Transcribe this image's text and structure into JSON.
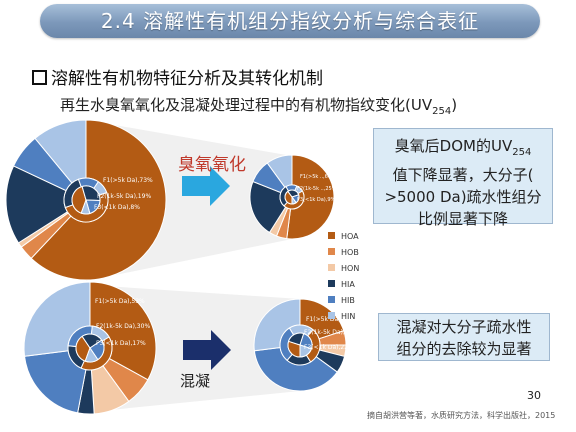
{
  "slide": {
    "title": "2.4 溶解性有机组分指纹分析与综合表征",
    "heading": "溶解性有机物特征分析及其转化机制",
    "subtitle_main": "再生水臭氧氧化及混凝处理过程中的有机物指纹变化(UV",
    "subtitle_sub": "254",
    "subtitle_close": ")",
    "page_number": "30",
    "citation": "摘自胡洪营等著，水质研究方法，科学出版社，2015"
  },
  "labels": {
    "ozone": "臭氧氧化",
    "coagulation": "混凝"
  },
  "notes": {
    "ozone_1": "臭氧后DOM的UV",
    "ozone_1_sub": "254",
    "ozone_2": "值下降显著，大分子(",
    "ozone_3": ">5000 Da)疏水性组分",
    "ozone_4": "比例显著下降",
    "coag_1": "混凝对大分子疏水性",
    "coag_2": "组分的去除较为显著"
  },
  "legend": [
    {
      "label": "HOA",
      "color": "#b35b14"
    },
    {
      "label": "HOB",
      "color": "#e0874a"
    },
    {
      "label": "HON",
      "color": "#f3c9a6"
    },
    {
      "label": "HIA",
      "color": "#1d3a5c"
    },
    {
      "label": "HIB",
      "color": "#4f7fc0"
    },
    {
      "label": "HIN",
      "color": "#a9c4e6"
    }
  ],
  "pie_text": {
    "oz_before_1": "F1(>5k Da),73%",
    "oz_before_2": "F2(1k-5k Da),19%",
    "oz_before_3": "F3(<1k Da),8%",
    "oz_after_1": "F1(>5k ..,66%",
    "oz_after_2": "F2(1k-5k ..,25%",
    "oz_after_3": "F3(<1k Da),9%",
    "co_before_1": "F1(>5k Da),53%",
    "co_before_2": "F2(1k-5k Da),30%",
    "co_before_3": "F3(<1k Da),17%",
    "co_after_1": "F1(>5k Da),41%",
    "co_after_2": "F2(1k-5k Da),37%",
    "co_after_3": "F3(<1k Da),22%"
  },
  "colors": {
    "ozone_label": "#c0392b",
    "arrow_light": "#2aa7df",
    "arrow_dark": "#1b2f6b",
    "banner": "#7c98ba"
  }
}
